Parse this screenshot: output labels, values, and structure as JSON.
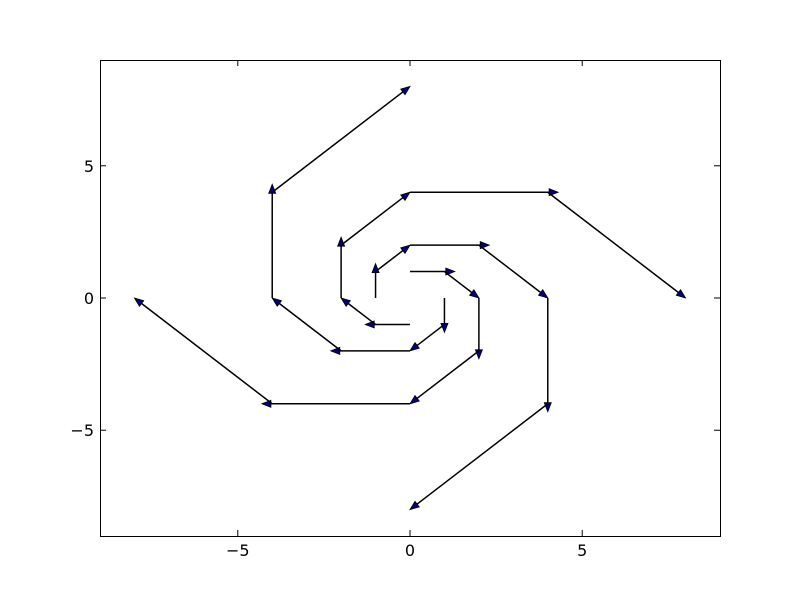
{
  "chart_data": {
    "type": "quiver",
    "title": "",
    "xlabel": "",
    "ylabel": "",
    "xlim": [
      -9,
      9
    ],
    "ylim": [
      -9,
      9
    ],
    "xticks": [
      -5,
      0,
      5
    ],
    "yticks": [
      -5,
      0,
      5
    ],
    "xtick_labels": [
      "−5",
      "0",
      "5"
    ],
    "ytick_labels": [
      "−5",
      "0",
      "5"
    ],
    "grid": false,
    "arrow_head_color": "#000080",
    "arrow_line_color": "#000000",
    "arrows": [
      {
        "x": 0,
        "y": 1,
        "dx": 1.3,
        "dy": 0
      },
      {
        "x": 1,
        "y": 1,
        "dx": 1.0,
        "dy": -1.0
      },
      {
        "x": 2,
        "y": 0,
        "dx": 0,
        "dy": -2.3
      },
      {
        "x": 2,
        "y": -2,
        "dx": -2.0,
        "dy": -2.0
      },
      {
        "x": 0,
        "y": -4,
        "dx": -4.3,
        "dy": 0
      },
      {
        "x": -4,
        "y": -4,
        "dx": -4.0,
        "dy": 4.0
      },
      {
        "x": 1,
        "y": 0,
        "dx": 0,
        "dy": -1.3
      },
      {
        "x": 1,
        "y": -1,
        "dx": -1.0,
        "dy": -1.0
      },
      {
        "x": 0,
        "y": -2,
        "dx": -2.3,
        "dy": 0
      },
      {
        "x": -2,
        "y": -2,
        "dx": -2.0,
        "dy": 2.0
      },
      {
        "x": -4,
        "y": 0,
        "dx": 0,
        "dy": 4.3
      },
      {
        "x": -4,
        "y": 4,
        "dx": 4.0,
        "dy": 4.0
      },
      {
        "x": 0,
        "y": -1,
        "dx": -1.3,
        "dy": 0
      },
      {
        "x": -1,
        "y": -1,
        "dx": -1.0,
        "dy": 1.0
      },
      {
        "x": -2,
        "y": 0,
        "dx": 0,
        "dy": 2.3
      },
      {
        "x": -2,
        "y": 2,
        "dx": 2.0,
        "dy": 2.0
      },
      {
        "x": 0,
        "y": 4,
        "dx": 4.3,
        "dy": 0
      },
      {
        "x": 4,
        "y": 4,
        "dx": 4.0,
        "dy": -4.0
      },
      {
        "x": -1,
        "y": 0,
        "dx": 0,
        "dy": 1.3
      },
      {
        "x": -1,
        "y": 1,
        "dx": 1.0,
        "dy": 1.0
      },
      {
        "x": 0,
        "y": 2,
        "dx": 2.3,
        "dy": 0
      },
      {
        "x": 2,
        "y": 2,
        "dx": 2.0,
        "dy": -2.0
      },
      {
        "x": 4,
        "y": 0,
        "dx": 0,
        "dy": -4.3
      },
      {
        "x": 4,
        "y": -4,
        "dx": -4.0,
        "dy": -4.0
      }
    ]
  }
}
